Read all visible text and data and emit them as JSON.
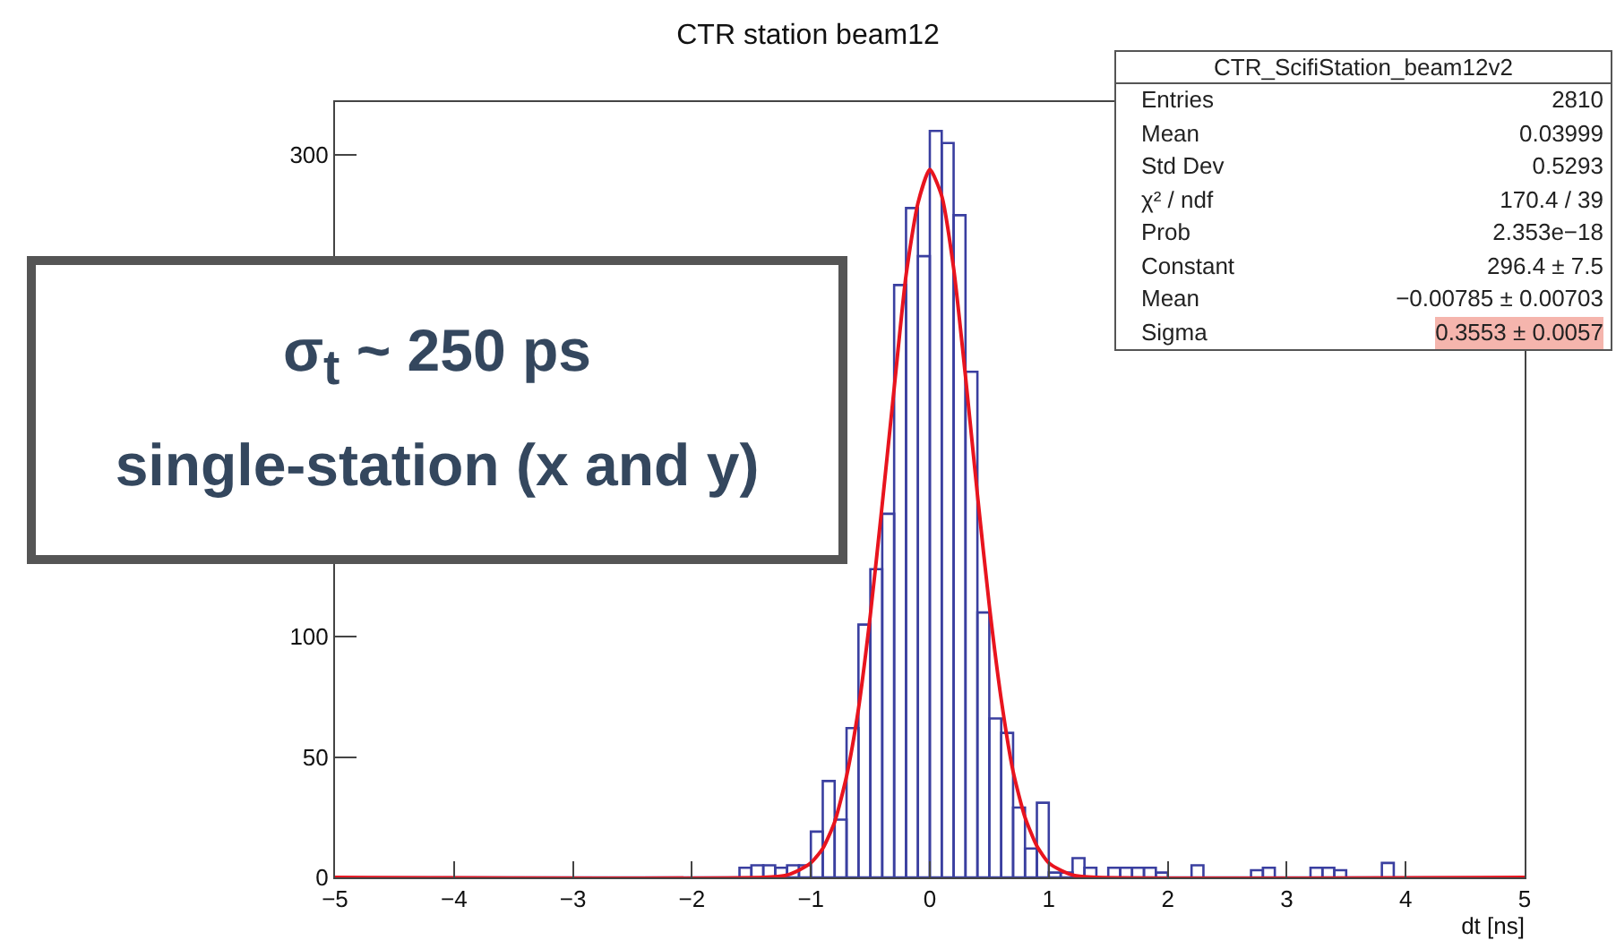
{
  "chart_data": {
    "type": "histogram",
    "title": "CTR station beam12",
    "xlabel": "dt [ns]",
    "bins": [
      -5,
      -4.9,
      -4.8,
      -4.7,
      -4.6,
      -4.5,
      -4.4,
      -4.3,
      -4.2,
      -4.1,
      -4,
      -3.9,
      -3.8,
      -3.7,
      -3.6,
      -3.5,
      -3.4,
      -3.3,
      -3.2,
      -3.1,
      -3,
      -2.9,
      -2.8,
      -2.7,
      -2.6,
      -2.5,
      -2.4,
      -2.3,
      -2.2,
      -2.1,
      -2,
      -1.9,
      -1.8,
      -1.7,
      -1.6,
      -1.5,
      -1.4,
      -1.3,
      -1.2,
      -1.1,
      -1,
      -0.9,
      -0.8,
      -0.7,
      -0.6,
      -0.5,
      -0.4,
      -0.3,
      -0.2,
      -0.1,
      0,
      0.1,
      0.2,
      0.3,
      0.4,
      0.5,
      0.6,
      0.7,
      0.8,
      0.9,
      1,
      1.1,
      1.2,
      1.3,
      1.4,
      1.5,
      1.6,
      1.7,
      1.8,
      1.9,
      2,
      2.1,
      2.2,
      2.3,
      2.4,
      2.5,
      2.6,
      2.7,
      2.8,
      2.9,
      3,
      3.1,
      3.2,
      3.3,
      3.4,
      3.5,
      3.6,
      3.7,
      3.8,
      3.9,
      4,
      4.1,
      4.2,
      4.3,
      4.4,
      4.5,
      4.6,
      4.7,
      4.8,
      4.9,
      5
    ],
    "values": [
      0,
      0,
      0,
      0,
      0,
      0,
      0,
      0,
      0,
      0,
      0,
      0,
      0,
      0,
      0,
      0,
      0,
      0,
      0,
      0,
      0,
      0,
      0,
      0,
      0,
      0,
      0,
      0,
      0,
      0,
      0,
      0,
      0,
      0,
      4,
      5,
      5,
      4,
      5,
      5,
      19,
      40,
      24,
      62,
      105,
      128,
      151,
      246,
      278,
      258,
      310,
      305,
      275,
      210,
      110,
      66,
      60,
      29,
      12,
      31,
      2,
      2,
      8,
      4,
      0,
      4,
      4,
      4,
      4,
      2,
      0,
      0,
      5,
      0,
      0,
      0,
      0,
      3,
      4,
      0,
      0,
      0,
      4,
      4,
      3,
      0,
      0,
      0,
      6,
      0,
      0,
      0,
      0,
      0,
      0,
      0,
      0,
      0,
      0,
      0
    ],
    "color": "#3a3fa0",
    "series": [
      {
        "type": "line",
        "color": "#e8141e",
        "x": [
          -5,
          -1.4,
          -1.2,
          -1.1,
          -1,
          -0.9,
          -0.8,
          -0.7,
          -0.6,
          -0.5,
          -0.4,
          -0.3,
          -0.2,
          -0.1,
          0,
          0.1,
          0.2,
          0.3,
          0.4,
          0.5,
          0.6,
          0.7,
          0.8,
          0.9,
          1,
          1.1,
          1.2,
          1.4,
          5
        ],
        "values": [
          0,
          0,
          1,
          3,
          6,
          12,
          23,
          42,
          70,
          109,
          155,
          203,
          250,
          280,
          294,
          283,
          253,
          208,
          159,
          113,
          74,
          44,
          25,
          13,
          6,
          3,
          1,
          0,
          0
        ]
      }
    ],
    "xlim": [
      -5,
      5
    ],
    "xticks": [
      {
        "value": -5,
        "label": "−5"
      },
      {
        "value": -4,
        "label": "−4"
      },
      {
        "value": -3,
        "label": "−3"
      },
      {
        "value": -2,
        "label": "−2"
      },
      {
        "value": -1,
        "label": "−1"
      },
      0,
      1,
      2,
      3,
      4,
      5
    ],
    "ylim": [
      0,
      322
    ],
    "yticks": [
      0,
      50,
      100,
      300
    ],
    "annotations": [
      "σ$_{t}$ ~ 250 ps",
      "single-station (x and y)",
      "CTR_ScifiStation_beam12v2",
      "Entries",
      "2810",
      "Mean",
      "0.03999",
      "Std Dev",
      "0.5293",
      "χ² / ndf",
      "170.4 / 39",
      "Prob",
      "2.353e−18",
      "Constant",
      "296.4 ± 7.5",
      "Mean",
      "−0.00785 ± 0.00703",
      "Sigma",
      "0.3553 ± 0.0057"
    ],
    "grid": false,
    "legend": false
  }
}
